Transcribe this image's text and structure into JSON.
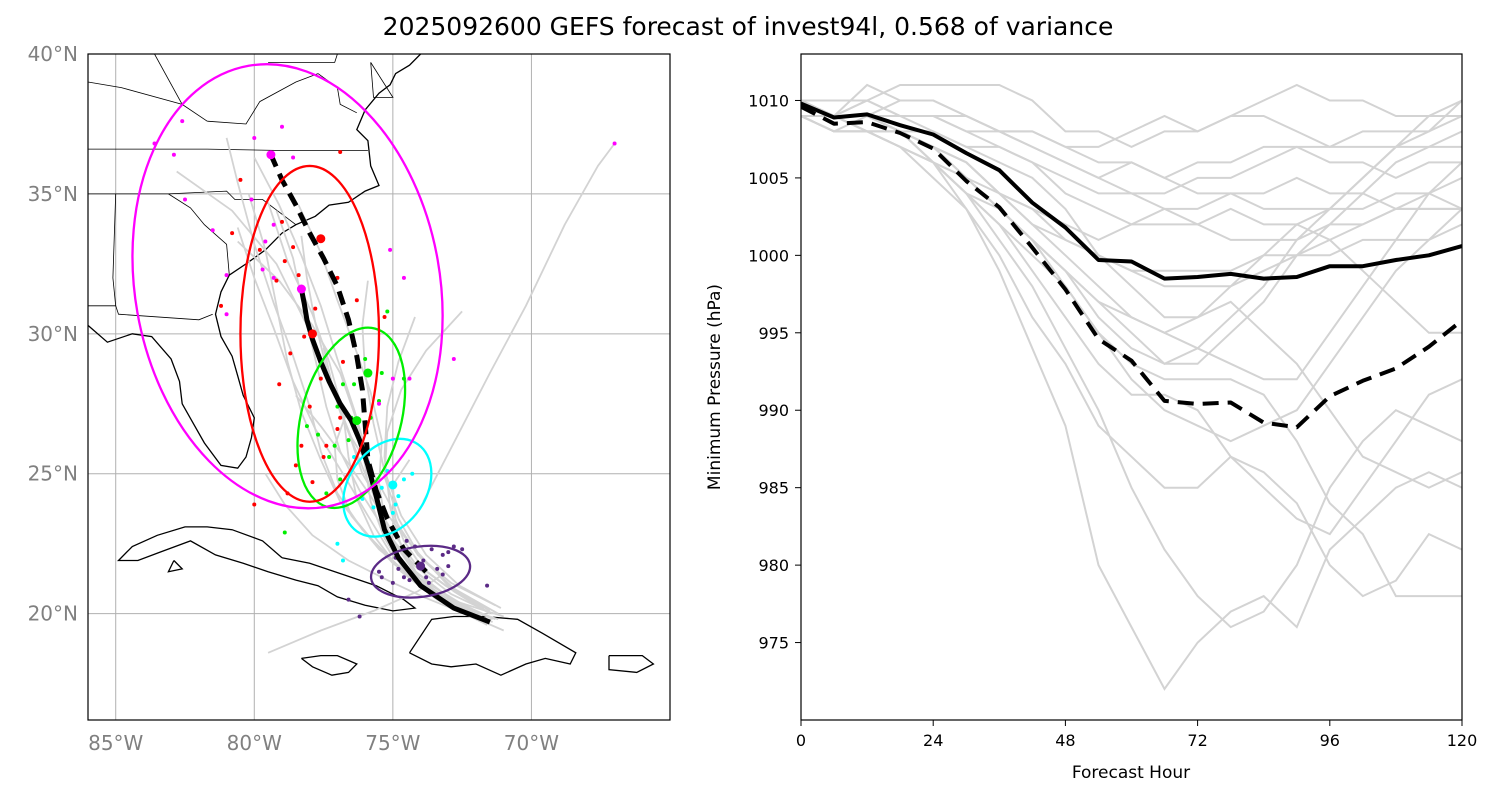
{
  "title": "2025092600 GEFS forecast of invest94l, 0.568 of variance",
  "chart_data": [
    {
      "type": "map",
      "lat_ticks": [
        20,
        25,
        30,
        35,
        40
      ],
      "lat_tick_labels": [
        "20°N",
        "25°N",
        "30°N",
        "35°N",
        "40°N"
      ],
      "lon_ticks": [
        -85,
        -80,
        -75,
        -70
      ],
      "lon_tick_labels": [
        "85°W",
        "80°W",
        "75°W",
        "70°W"
      ],
      "lon_range": [
        -86,
        -65
      ],
      "lat_range": [
        16.2,
        40
      ],
      "grid": true,
      "colors": {
        "track_bg": "#d3d3d3",
        "coast": "#000000",
        "grid": "#b0b0b0"
      },
      "mean_track": [
        [
          -71.5,
          19.7
        ],
        [
          -72.8,
          20.2
        ],
        [
          -74.0,
          21.0
        ],
        [
          -74.8,
          22.0
        ],
        [
          -75.3,
          23.0
        ],
        [
          -75.6,
          24.2
        ],
        [
          -75.9,
          25.3
        ],
        [
          -76.2,
          26.2
        ],
        [
          -76.5,
          26.9
        ],
        [
          -76.9,
          27.5
        ],
        [
          -77.3,
          28.3
        ],
        [
          -77.6,
          29.0
        ],
        [
          -77.9,
          29.8
        ],
        [
          -78.1,
          30.5
        ],
        [
          -78.2,
          31.1
        ],
        [
          -78.3,
          31.6
        ]
      ],
      "median_track": [
        [
          -73.8,
          21.5
        ],
        [
          -74.6,
          22.3
        ],
        [
          -75.2,
          23.4
        ],
        [
          -75.6,
          24.4
        ],
        [
          -75.9,
          25.5
        ],
        [
          -76.0,
          26.8
        ],
        [
          -76.1,
          28.0
        ],
        [
          -76.3,
          29.2
        ],
        [
          -76.6,
          30.5
        ],
        [
          -77.0,
          31.7
        ],
        [
          -77.5,
          32.7
        ],
        [
          -78.0,
          33.6
        ],
        [
          -78.5,
          34.6
        ],
        [
          -79.0,
          35.5
        ],
        [
          -79.4,
          36.4
        ]
      ],
      "ellipses": [
        {
          "color": "#5b2a86",
          "center": [
            -74.0,
            21.5
          ],
          "rx": 1.8,
          "ry": 0.9,
          "angle": -8
        },
        {
          "color": "#00ffff",
          "center": [
            -75.2,
            24.5
          ],
          "rx": 1.4,
          "ry": 1.9,
          "angle": 35
        },
        {
          "color": "#00ee00",
          "center": [
            -76.5,
            27.0
          ],
          "rx": 1.8,
          "ry": 3.3,
          "angle": 15
        },
        {
          "color": "#ff0000",
          "center": [
            -78.0,
            30.0
          ],
          "rx": 2.5,
          "ry": 6.0,
          "angle": 0
        },
        {
          "color": "#ff00ff",
          "center": [
            -78.8,
            31.7
          ],
          "rx": 5.5,
          "ry": 8.0,
          "angle": -10
        }
      ],
      "centers": [
        {
          "color": "#5b2a86",
          "lon": -74.0,
          "lat": 21.7
        },
        {
          "color": "#00ffff",
          "lon": -75.0,
          "lat": 24.6
        },
        {
          "color": "#00ee00",
          "lon": -76.3,
          "lat": 26.9
        },
        {
          "color": "#00ee00",
          "lon": -75.9,
          "lat": 28.6
        },
        {
          "color": "#ff0000",
          "lon": -77.9,
          "lat": 30.0
        },
        {
          "color": "#ff0000",
          "lon": -77.6,
          "lat": 33.4
        },
        {
          "color": "#ff00ff",
          "lon": -78.3,
          "lat": 31.6
        },
        {
          "color": "#ff00ff",
          "lon": -79.4,
          "lat": 36.4
        }
      ]
    },
    {
      "type": "line",
      "xlabel": "Forecast Hour",
      "ylabel": "Minimum Pressure (hPa)",
      "x_ticks": [
        0,
        24,
        48,
        72,
        96,
        120
      ],
      "y_ticks": [
        975,
        980,
        985,
        990,
        995,
        1000,
        1005,
        1010
      ],
      "xlim": [
        0,
        120
      ],
      "ylim": [
        970,
        1013
      ],
      "series": [
        {
          "style": "mean",
          "color": "#000000",
          "x": [
            0,
            6,
            12,
            18,
            24,
            30,
            36,
            42,
            48,
            54,
            60,
            66,
            72,
            78,
            84,
            90,
            96,
            102,
            108,
            114,
            120
          ],
          "values": [
            1009.8,
            1008.9,
            1009.1,
            1008.4,
            1007.8,
            1006.6,
            1005.5,
            1003.4,
            1001.8,
            999.7,
            999.6,
            998.5,
            998.6,
            998.8,
            998.5,
            998.6,
            999.3,
            999.3,
            999.7,
            1000.0,
            1000.6
          ]
        },
        {
          "style": "median",
          "color": "#000000",
          "x": [
            0,
            6,
            12,
            18,
            24,
            30,
            36,
            42,
            48,
            54,
            60,
            66,
            72,
            78,
            84,
            90,
            96,
            102,
            108,
            114,
            120
          ],
          "values": [
            1009.6,
            1008.5,
            1008.6,
            1007.9,
            1006.9,
            1004.8,
            1003.1,
            1000.5,
            997.8,
            994.6,
            993.2,
            990.6,
            990.4,
            990.5,
            989.2,
            988.9,
            990.9,
            991.9,
            992.7,
            994.1,
            995.8
          ]
        }
      ],
      "member_color": "#d3d3d3"
    }
  ]
}
